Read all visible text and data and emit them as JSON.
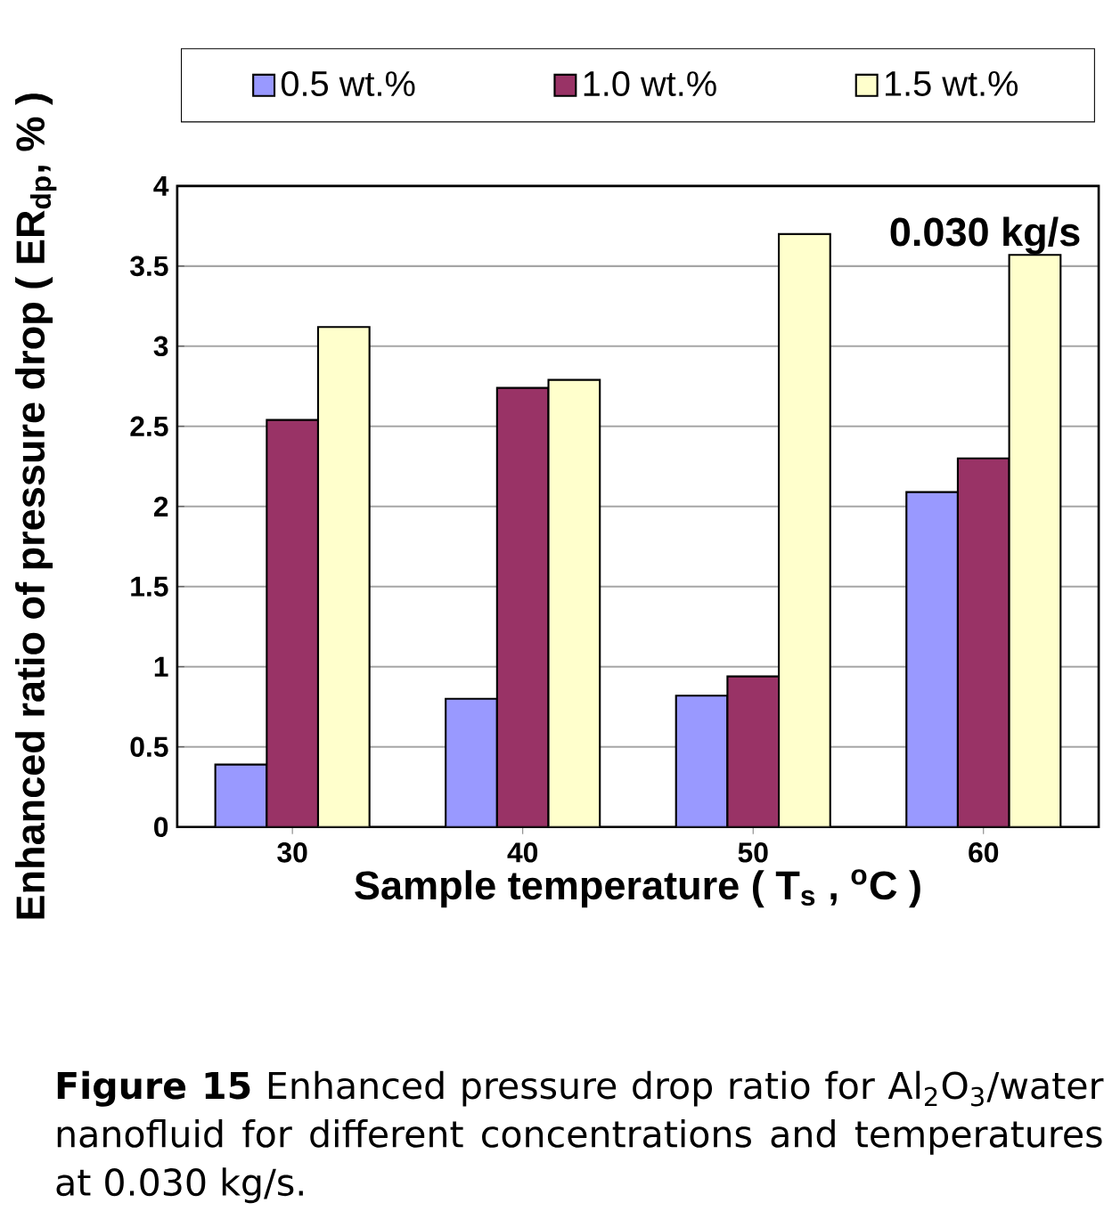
{
  "chart_data": {
    "type": "bar",
    "categories": [
      "30",
      "40",
      "50",
      "60"
    ],
    "series": [
      {
        "name": "0.5 wt.%",
        "color": "#9999ff",
        "values": [
          0.39,
          0.8,
          0.82,
          2.09
        ]
      },
      {
        "name": "1.0 wt.%",
        "color": "#993366",
        "values": [
          2.54,
          2.74,
          0.94,
          2.3
        ]
      },
      {
        "name": "1.5 wt.%",
        "color": "#ffffcc",
        "values": [
          3.12,
          2.79,
          3.7,
          3.57
        ]
      }
    ],
    "xlabel": "Sample temperature ( T$_{s}$ , $^{o}$C )",
    "ylabel": "Enhanced ratio of pressure drop ( ER$_{dp}$, % )",
    "ylim": [
      0,
      4
    ],
    "yticks": [
      0,
      0.5,
      1,
      1.5,
      2,
      2.5,
      3,
      3.5,
      4
    ],
    "grid": "y",
    "legend": "top",
    "annotations": [
      "0.030 kg/s",
      "**Figure 15** Enhanced pressure drop ratio for Al$_{2}$O$_{3}$/water nanofluid for different concentrations and temperatures at 0.030 kg/s."
    ]
  }
}
